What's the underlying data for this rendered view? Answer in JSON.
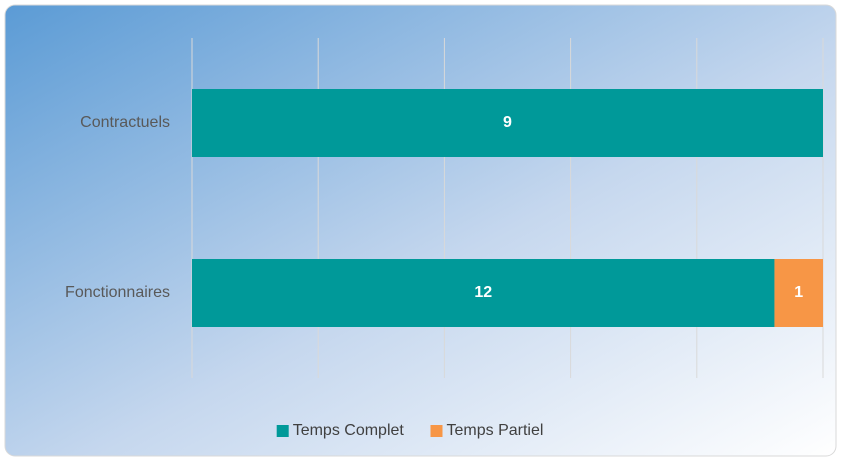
{
  "chart_data": {
    "type": "bar",
    "orientation": "horizontal",
    "stacking": "percent",
    "categories": [
      "Contractuels",
      "Fonctionnaires"
    ],
    "series": [
      {
        "name": "Temps Complet",
        "color": "#009999",
        "values": [
          9,
          12
        ]
      },
      {
        "name": "Temps Partiel",
        "color": "#f79646",
        "values": [
          null,
          1
        ]
      }
    ],
    "xlim": [
      0,
      100
    ],
    "xticks": [
      0,
      20,
      40,
      60,
      80,
      100
    ],
    "grid": true,
    "tick_labels": false,
    "legend": "bottom"
  }
}
